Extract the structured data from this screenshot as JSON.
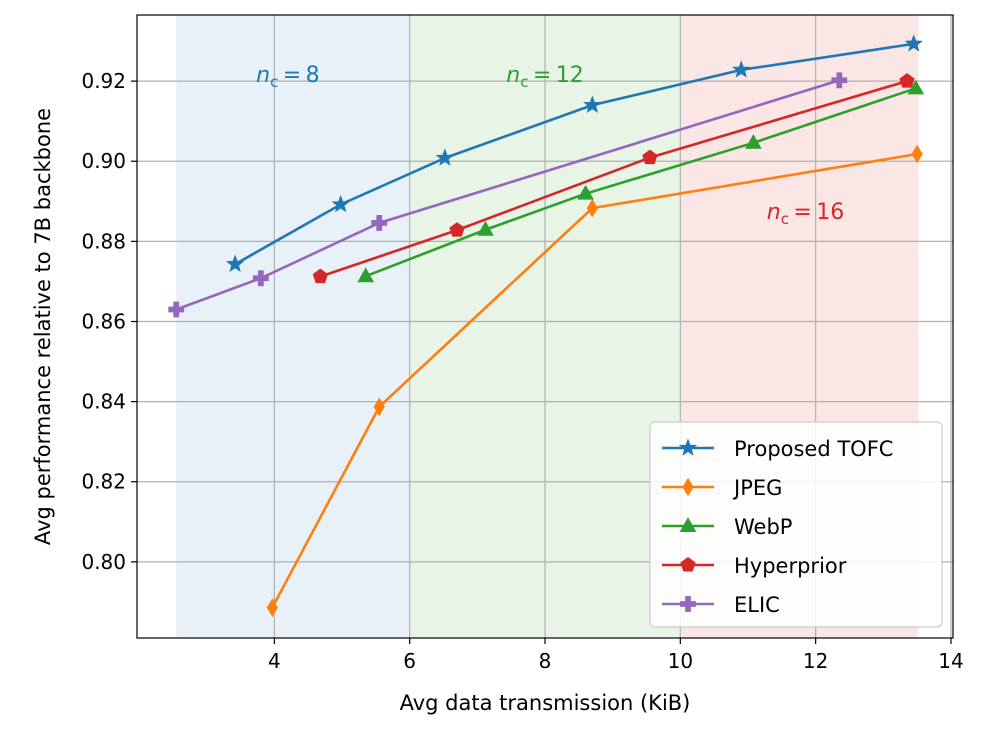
{
  "chart_data": {
    "type": "line",
    "title": "",
    "xlabel": "Avg data transmission (KiB)",
    "ylabel": "Avg performance relative to 7B backbone",
    "xlim": [
      1.97,
      14.03
    ],
    "ylim": [
      0.781,
      0.9365
    ],
    "xticks": [
      4,
      6,
      8,
      10,
      12,
      14
    ],
    "xtick_labels": [
      "4",
      "6",
      "8",
      "10",
      "12",
      "14"
    ],
    "yticks": [
      0.8,
      0.82,
      0.84,
      0.86,
      0.88,
      0.9,
      0.92
    ],
    "ytick_labels": [
      "0.80",
      "0.82",
      "0.84",
      "0.86",
      "0.88",
      "0.90",
      "0.92"
    ],
    "grid": true,
    "legend_position": "lower-right",
    "regions": [
      {
        "label_main": "n",
        "label_sub": "c",
        "label_value": "8",
        "x_range": [
          2.55,
          6.0
        ],
        "fill": "#e8f0f8",
        "text_color": "#1f77b4",
        "label_x": 4.2
      },
      {
        "label_main": "n",
        "label_sub": "c",
        "label_value": "12",
        "x_range": [
          6.0,
          10.0
        ],
        "fill": "#e8f4e6",
        "text_color": "#2ca02c",
        "label_x": 8.0
      },
      {
        "label_main": "n",
        "label_sub": "c",
        "label_value": "16",
        "x_range": [
          10.0,
          13.52
        ],
        "fill": "#fbe6e6",
        "text_color": "#d62728",
        "label_x": 11.85
      }
    ],
    "series": [
      {
        "name": "Proposed TOFC",
        "color": "#1f77b4",
        "marker": "star",
        "x": [
          3.42,
          4.98,
          6.52,
          8.7,
          10.9,
          13.45
        ],
        "y": [
          0.8743,
          0.8892,
          0.9008,
          0.914,
          0.9228,
          0.9293
        ]
      },
      {
        "name": "JPEG",
        "color": "#ff7f0e",
        "marker": "diamond",
        "x": [
          3.97,
          5.55,
          8.7,
          13.5
        ],
        "y": [
          0.7886,
          0.8387,
          0.8883,
          0.9018
        ]
      },
      {
        "name": "WebP",
        "color": "#2ca02c",
        "marker": "triangle",
        "x": [
          5.35,
          7.12,
          8.6,
          11.08,
          13.48
        ],
        "y": [
          0.8713,
          0.8829,
          0.8919,
          0.9046,
          0.9182
        ]
      },
      {
        "name": "Hyperprior",
        "color": "#d62728",
        "marker": "pentagon",
        "x": [
          4.68,
          6.7,
          9.55,
          13.35
        ],
        "y": [
          0.8712,
          0.8828,
          0.9009,
          0.92
        ]
      },
      {
        "name": "ELIC",
        "color": "#9467bd",
        "marker": "plus",
        "x": [
          2.55,
          3.8,
          5.55,
          12.35
        ],
        "y": [
          0.863,
          0.8708,
          0.8846,
          0.9202
        ]
      }
    ]
  }
}
